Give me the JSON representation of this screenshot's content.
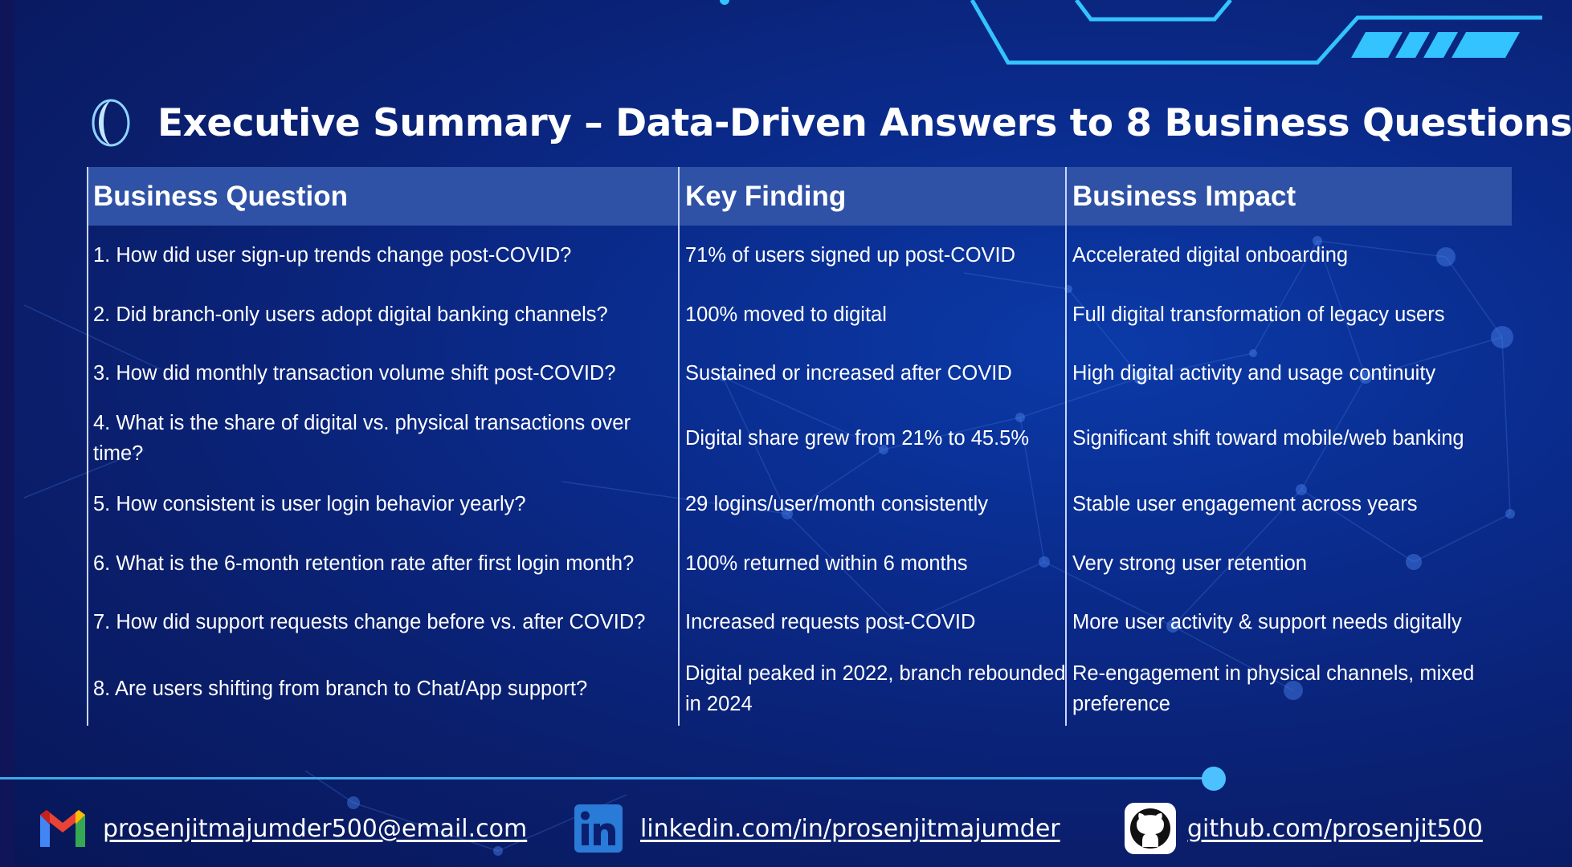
{
  "slide": {
    "title": "Executive Summary – Data-Driven Answers to 8 Business Questions"
  },
  "table": {
    "headers": [
      "Business Question",
      "Key Finding",
      "Business Impact"
    ],
    "rows": [
      {
        "question": "1. How did user sign-up trends change post-COVID?",
        "finding": "71% of users signed up post-COVID",
        "impact": "Accelerated digital onboarding"
      },
      {
        "question": "2. Did branch-only users adopt digital banking channels?",
        "finding": "100% moved to digital",
        "impact": "Full digital transformation of legacy users"
      },
      {
        "question": "3. How did monthly transaction volume shift post-COVID?",
        "finding": "Sustained or increased after COVID",
        "impact": "High digital activity and usage continuity"
      },
      {
        "question": "4. What is the share of digital vs. physical transactions over time?",
        "finding": "Digital share grew from 21% to 45.5%",
        "impact": "Significant shift toward mobile/web banking"
      },
      {
        "question": "5. How consistent is user login behavior yearly?",
        "finding": "29 logins/user/month consistently",
        "impact": "Stable user engagement across years"
      },
      {
        "question": "6. What is the 6-month retention rate after first login month?",
        "finding": "100% returned within 6 months",
        "impact": "Very strong user retention"
      },
      {
        "question": "7. How did support requests change before vs. after COVID?",
        "finding": "Increased requests post-COVID",
        "impact": "More user activity & support needs digitally"
      },
      {
        "question": "8. Are users shifting from branch to Chat/App support?",
        "finding": "Digital peaked in 2022, branch rebounded in 2024",
        "impact": "Re-engagement in physical channels, mixed preference"
      }
    ]
  },
  "contacts": {
    "email": {
      "label": "prosenjitmajumder500@email.com",
      "icon": "gmail-icon"
    },
    "linkedin": {
      "label": "linkedin.com/in/prosenjitmajumder",
      "icon": "linkedin-icon"
    },
    "github": {
      "label": "github.com/prosenjit500",
      "icon": "github-icon"
    }
  },
  "colors": {
    "background": "#0a2a8a",
    "header_fill": "#2f52a6",
    "accent": "#3fa9ea",
    "divider": "#c9d6ff"
  }
}
